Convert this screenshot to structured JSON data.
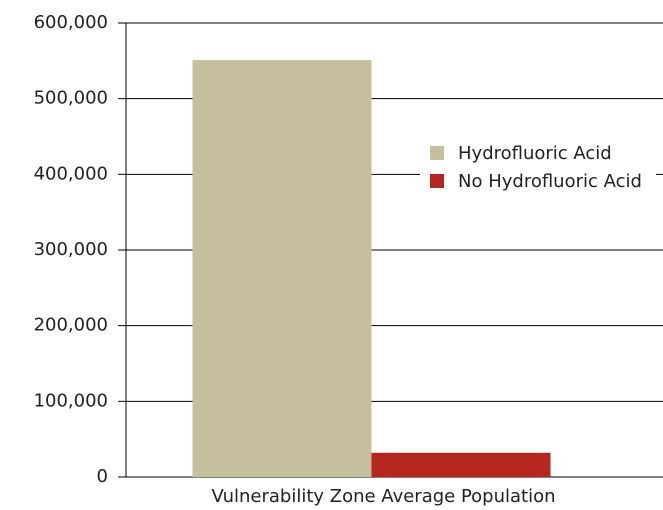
{
  "chart_data": {
    "type": "bar",
    "categories": [
      "Vulnerability Zone Average Population"
    ],
    "series": [
      {
        "name": "Hydrofluoric Acid",
        "color": "#c5bf9f",
        "values": [
          551000
        ]
      },
      {
        "name": "No Hydrofluoric Acid",
        "color": "#b5271e",
        "values": [
          32000
        ]
      }
    ],
    "ylim": [
      0,
      600000
    ],
    "yticks": [
      0,
      {
        "value": 100000,
        "label": "100,000"
      },
      {
        "value": 200000,
        "label": "200,000"
      },
      {
        "value": 300000,
        "label": "300,000"
      },
      {
        "value": 400000,
        "label": "400,000"
      },
      {
        "value": 500000,
        "label": "500,000"
      },
      {
        "value": 600000,
        "label": "600,000"
      }
    ],
    "grid": true,
    "legend": "right"
  }
}
